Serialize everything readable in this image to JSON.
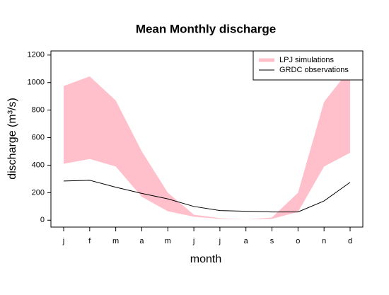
{
  "chart_data": {
    "type": "line",
    "title": "Mean Monthly discharge",
    "x_label": "month",
    "y_label": "discharge (m³/s)",
    "categories": [
      "j",
      "f",
      "m",
      "a",
      "m",
      "j",
      "j",
      "a",
      "s",
      "o",
      "n",
      "d"
    ],
    "ylim": [
      -50,
      1230
    ],
    "yticks": [
      0,
      200,
      400,
      600,
      800,
      1000,
      1200
    ],
    "legend": "top-right",
    "series": [
      {
        "name": "LPJ simulations",
        "type": "band",
        "color": "#ffc0cb",
        "upper": [
          975,
          1045,
          870,
          500,
          200,
          40,
          15,
          5,
          20,
          200,
          860,
          1100
        ],
        "lower": [
          410,
          445,
          390,
          170,
          65,
          25,
          10,
          5,
          10,
          60,
          390,
          490
        ]
      },
      {
        "name": "GRDC observations",
        "type": "line",
        "color": "#000000",
        "values": [
          285,
          290,
          240,
          195,
          155,
          100,
          70,
          65,
          60,
          60,
          140,
          275
        ]
      }
    ]
  }
}
